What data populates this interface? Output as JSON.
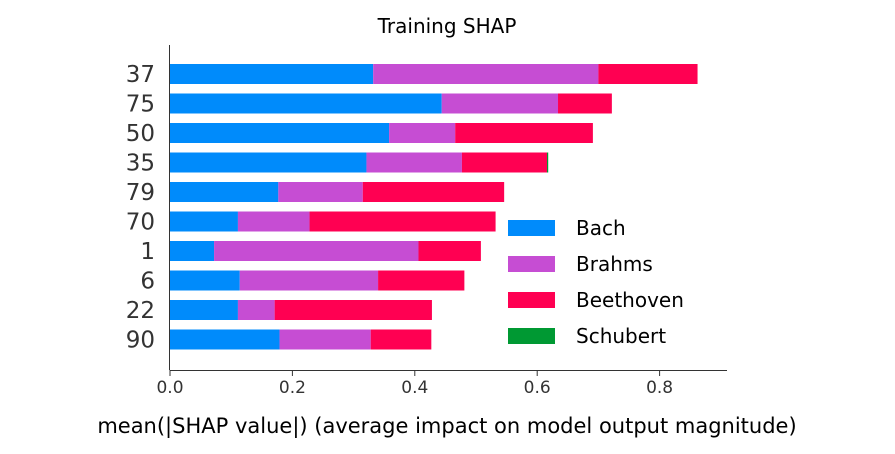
{
  "chart_data": {
    "type": "bar",
    "orientation": "horizontal",
    "stacked": true,
    "title": "Training SHAP",
    "xlabel": "mean(|SHAP value|) (average impact on model output magnitude)",
    "ylabel": "",
    "xlim": [
      0,
      0.9
    ],
    "xticks": [
      "0.0",
      "0.2",
      "0.4",
      "0.6",
      "0.8"
    ],
    "categories": [
      "37",
      "75",
      "50",
      "35",
      "79",
      "70",
      "1",
      "6",
      "22",
      "90"
    ],
    "series": [
      {
        "name": "Bach",
        "color": "#008bfb",
        "values": [
          0.332,
          0.444,
          0.358,
          0.321,
          0.177,
          0.111,
          0.072,
          0.114,
          0.111,
          0.179
        ]
      },
      {
        "name": "Brahms",
        "color": "#c64dd3",
        "values": [
          0.368,
          0.19,
          0.108,
          0.156,
          0.138,
          0.117,
          0.334,
          0.226,
          0.06,
          0.149
        ]
      },
      {
        "name": "Beethoven",
        "color": "#ff0052",
        "values": [
          0.162,
          0.088,
          0.225,
          0.139,
          0.231,
          0.304,
          0.102,
          0.141,
          0.257,
          0.099
        ]
      },
      {
        "name": "Schubert",
        "color": "#009933",
        "values": [
          0,
          0,
          0,
          0.002,
          0,
          0,
          0,
          0,
          0,
          0
        ]
      }
    ],
    "grid": false,
    "legend": "lower-right"
  }
}
